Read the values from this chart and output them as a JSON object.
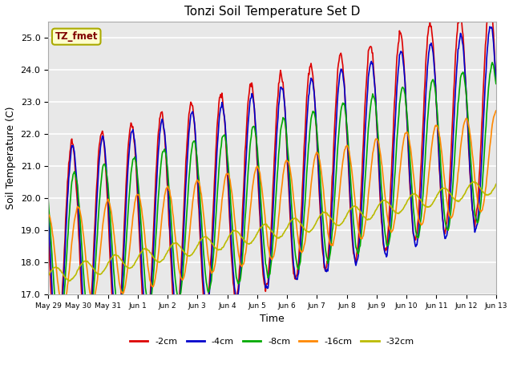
{
  "title": "Tonzi Soil Temperature Set D",
  "xlabel": "Time",
  "ylabel": "Soil Temperature (C)",
  "legend_label": "TZ_fmet",
  "ylim": [
    17.0,
    25.5
  ],
  "series_labels": [
    "-2cm",
    "-4cm",
    "-8cm",
    "-16cm",
    "-32cm"
  ],
  "series_colors": [
    "#dd0000",
    "#0000cc",
    "#00aa00",
    "#ff8800",
    "#bbbb00"
  ],
  "series_linewidths": [
    1.2,
    1.2,
    1.2,
    1.2,
    1.2
  ],
  "tick_labels": [
    "May 29",
    "May 30",
    "May 31",
    "Jun 1",
    "Jun 2",
    "Jun 3",
    "Jun 4",
    "Jun 5",
    "Jun 6",
    "Jun 7",
    "Jun 8",
    "Jun 9",
    "Jun 10",
    "Jun 11",
    "Jun 12",
    "Jun 13"
  ],
  "yticks": [
    17.0,
    18.0,
    19.0,
    20.0,
    21.0,
    22.0,
    23.0,
    24.0,
    25.0
  ],
  "axes_bg_color": "#e8e8e8",
  "grid_color": "#ffffff",
  "legend_box_facecolor": "#ffffcc",
  "legend_text_color": "#800000",
  "legend_border_color": "#aaaa00",
  "fig_width": 6.4,
  "fig_height": 4.8,
  "dpi": 100
}
